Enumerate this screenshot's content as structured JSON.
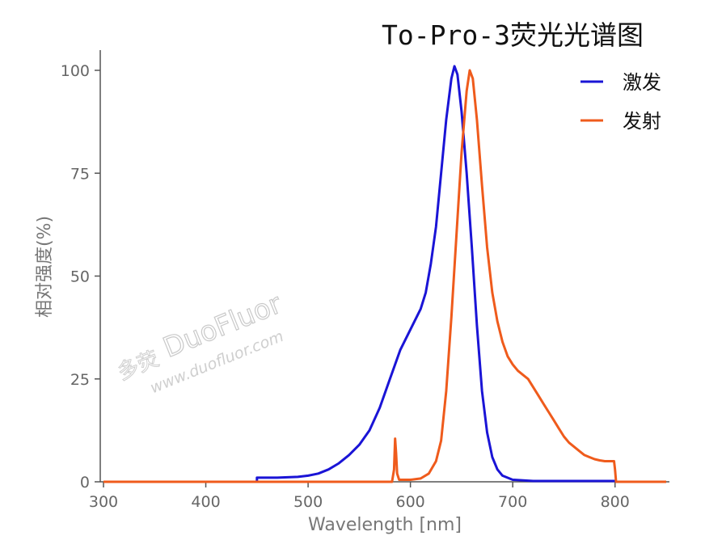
{
  "chart_data": {
    "type": "line",
    "title": "To-Pro-3荧光光谱图",
    "xlabel": "Wavelength [nm]",
    "ylabel": "相对强度(%)",
    "xlim": [
      300,
      850
    ],
    "ylim": [
      0,
      100
    ],
    "x_ticks": [
      "300",
      "400",
      "500",
      "600",
      "700",
      "800"
    ],
    "y_ticks": [
      "0",
      "25",
      "50",
      "75",
      "100"
    ],
    "legend_position": "top-right",
    "grid": false,
    "series": [
      {
        "name": "激发",
        "color": "#1a14d6",
        "points": [
          [
            450,
            0
          ],
          [
            450,
            1
          ],
          [
            470,
            1
          ],
          [
            490,
            1.2
          ],
          [
            500,
            1.5
          ],
          [
            510,
            2
          ],
          [
            520,
            3
          ],
          [
            530,
            4.5
          ],
          [
            540,
            6.5
          ],
          [
            550,
            9
          ],
          [
            560,
            12.5
          ],
          [
            570,
            18
          ],
          [
            580,
            25
          ],
          [
            590,
            32
          ],
          [
            600,
            37
          ],
          [
            610,
            42
          ],
          [
            615,
            46
          ],
          [
            620,
            53
          ],
          [
            625,
            62
          ],
          [
            630,
            75
          ],
          [
            635,
            88
          ],
          [
            640,
            98
          ],
          [
            643,
            101
          ],
          [
            646,
            99
          ],
          [
            650,
            90
          ],
          [
            655,
            75
          ],
          [
            660,
            57
          ],
          [
            665,
            38
          ],
          [
            670,
            22
          ],
          [
            675,
            12
          ],
          [
            680,
            6
          ],
          [
            685,
            3
          ],
          [
            690,
            1.5
          ],
          [
            700,
            0.5
          ],
          [
            720,
            0.2
          ],
          [
            800,
            0.2
          ]
        ]
      },
      {
        "name": "发射",
        "color": "#ef5b1c",
        "points": [
          [
            300,
            0
          ],
          [
            582,
            0
          ],
          [
            584,
            3
          ],
          [
            585,
            10.5
          ],
          [
            586,
            7
          ],
          [
            587,
            2
          ],
          [
            589,
            0.5
          ],
          [
            600,
            0.5
          ],
          [
            610,
            0.8
          ],
          [
            618,
            2
          ],
          [
            625,
            5
          ],
          [
            630,
            10
          ],
          [
            635,
            22
          ],
          [
            640,
            40
          ],
          [
            645,
            60
          ],
          [
            650,
            80
          ],
          [
            655,
            95
          ],
          [
            658,
            100
          ],
          [
            661,
            98
          ],
          [
            665,
            88
          ],
          [
            670,
            72
          ],
          [
            675,
            57
          ],
          [
            680,
            46
          ],
          [
            685,
            39
          ],
          [
            690,
            34
          ],
          [
            695,
            30.5
          ],
          [
            700,
            28.5
          ],
          [
            705,
            27
          ],
          [
            710,
            26
          ],
          [
            715,
            25
          ],
          [
            720,
            23
          ],
          [
            725,
            21
          ],
          [
            730,
            19
          ],
          [
            735,
            17
          ],
          [
            740,
            15
          ],
          [
            745,
            13
          ],
          [
            750,
            11
          ],
          [
            755,
            9.5
          ],
          [
            760,
            8.5
          ],
          [
            765,
            7.5
          ],
          [
            770,
            6.5
          ],
          [
            775,
            6
          ],
          [
            780,
            5.5
          ],
          [
            785,
            5.2
          ],
          [
            790,
            5
          ],
          [
            795,
            5
          ],
          [
            799,
            5
          ],
          [
            800,
            3
          ],
          [
            801,
            0
          ],
          [
            850,
            0
          ]
        ]
      }
    ]
  },
  "watermark": {
    "brand": "DuoFluor",
    "url": "www.duofluor.com",
    "cn": "多荧"
  }
}
